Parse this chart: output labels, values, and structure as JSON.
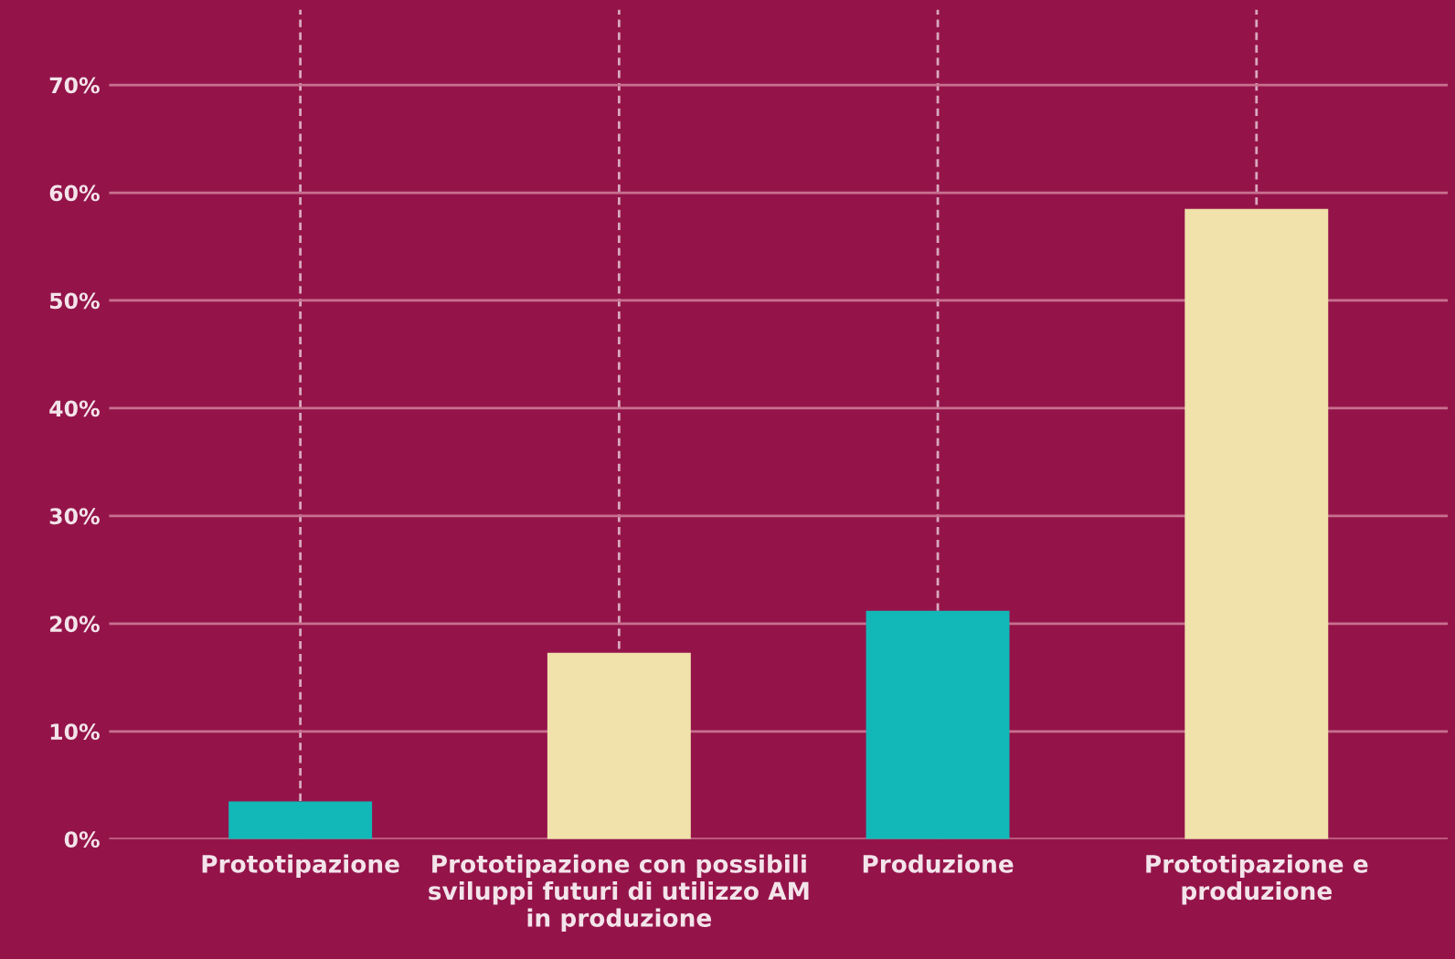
{
  "chart_data": {
    "type": "bar",
    "categories": [
      "Prototipazione",
      "Prototipazione con possibili\nsviluppi futuri di utilizzo AM\nin produzione",
      "Produzione",
      "Prototipazione e\nproduzione"
    ],
    "values": [
      3.5,
      17.3,
      21.2,
      58.5
    ],
    "colors": [
      "#12b8b8",
      "#f0e2aa",
      "#12b8b8",
      "#f0e2aa"
    ],
    "ylim": [
      0,
      77
    ],
    "yticks": [
      {
        "value": 0,
        "label": "0%"
      },
      {
        "value": 10,
        "label": "10%"
      },
      {
        "value": 20,
        "label": "20%"
      },
      {
        "value": 30,
        "label": "30%"
      },
      {
        "value": 40,
        "label": "40%"
      },
      {
        "value": 50,
        "label": "50%"
      },
      {
        "value": 60,
        "label": "60%"
      },
      {
        "value": 70,
        "label": "70%"
      }
    ],
    "grid": true
  }
}
